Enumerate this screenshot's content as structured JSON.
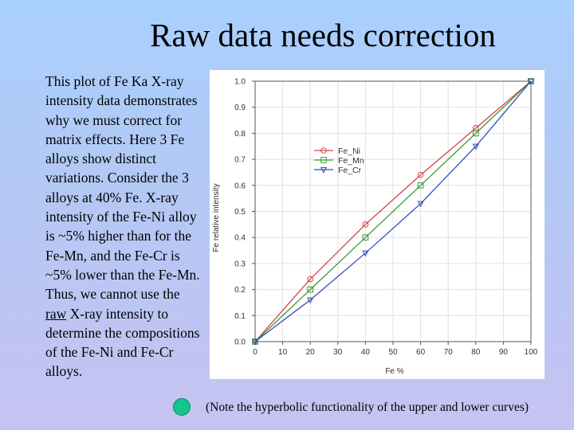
{
  "slide": {
    "title": "Raw data needs correction",
    "body_parts": [
      "This plot of Fe Ka X-ray intensity data demonstrates why we must correct for matrix effects. Here 3 Fe alloys show distinct variations. Consider the 3 alloys at 40% Fe. X-ray intensity of the Fe-Ni alloy is ~5% higher than for the Fe-Mn, and the Fe-Cr is ~5% lower than the Fe-Mn. Thus, we cannot use the ",
      "raw",
      " X-ray intensity to determine the compositions of the Fe-Ni and Fe-Cr alloys."
    ],
    "note": "(Note the hyperbolic functionality of the upper and lower curves)",
    "dot_color": "#14c48a"
  },
  "chart_data": {
    "type": "line",
    "xlabel": "Fe %",
    "ylabel": "Fe relative intensity",
    "xlim": [
      0,
      100
    ],
    "ylim": [
      0,
      1.0
    ],
    "x_ticks": [
      0,
      10,
      20,
      30,
      40,
      50,
      60,
      70,
      80,
      90,
      100
    ],
    "y_ticks": [
      0.0,
      0.1,
      0.2,
      0.3,
      0.4,
      0.5,
      0.6,
      0.7,
      0.8,
      0.9,
      1.0
    ],
    "y_tick_labels": [
      "0.0",
      "0.1",
      "0.2",
      "0.3",
      "0.4",
      "0.5",
      "0.6",
      "0.7",
      "0.8",
      "0.9",
      "1.0"
    ],
    "grid": true,
    "legend_position": "upper-left",
    "series": [
      {
        "name": "Fe_Ni",
        "marker": "circle",
        "color": "#d94040",
        "x": [
          0,
          20,
          40,
          60,
          80,
          100
        ],
        "y": [
          0.0,
          0.24,
          0.45,
          0.64,
          0.82,
          1.0
        ]
      },
      {
        "name": "Fe_Mn",
        "marker": "square",
        "color": "#3a9a3a",
        "x": [
          0,
          20,
          40,
          60,
          80,
          100
        ],
        "y": [
          0.0,
          0.2,
          0.4,
          0.6,
          0.8,
          1.0
        ]
      },
      {
        "name": "Fe_Cr",
        "marker": "triangle-down",
        "color": "#3a4ab8",
        "x": [
          0,
          20,
          40,
          60,
          80,
          100
        ],
        "y": [
          0.0,
          0.16,
          0.34,
          0.53,
          0.75,
          1.0
        ]
      }
    ]
  }
}
